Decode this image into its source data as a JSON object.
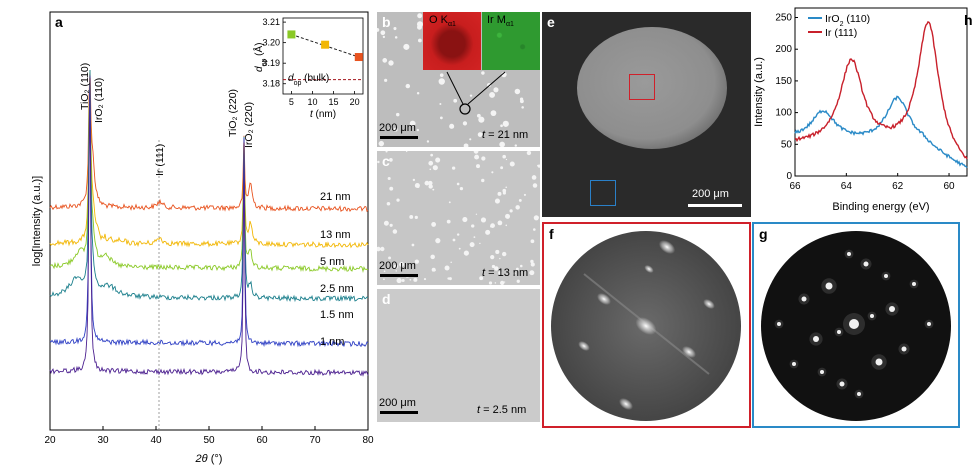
{
  "panels": {
    "a": {
      "label": "a",
      "xlabel_italic": "2θ",
      "xlabel_unit": "(°)",
      "ylabel": "log[Intensity (a.u.)]",
      "xticks": [
        "20",
        "30",
        "40",
        "50",
        "60",
        "70",
        "80"
      ],
      "peak_labels": {
        "tio2_110": "TiO₂ (110)",
        "iro2_110": "IrO₂ (110)",
        "ir_111": "Ir (111)",
        "tio2_220": "TiO₂ (220)",
        "iro2_220": "IrO₂ (220)"
      },
      "traces": [
        {
          "name": "21 nm",
          "color": "#e8531f"
        },
        {
          "name": "13 nm",
          "color": "#f2b705"
        },
        {
          "name": "5 nm",
          "color": "#8ac926"
        },
        {
          "name": "2.5 nm",
          "color": "#1b7f8c"
        },
        {
          "name": "1.5 nm",
          "color": "#2e3fc4"
        },
        {
          "name": "1 nm",
          "color": "#4b1f8f"
        }
      ],
      "inset": {
        "ylabel": "dop (Å)",
        "ylabel_main": "d",
        "ylabel_sub": "op",
        "ylabel_unit": "(Å)",
        "xlabel_italic": "t",
        "xlabel_unit": "(nm)",
        "yticks": [
          "3.21",
          "3.20",
          "3.19",
          "3.18"
        ],
        "xticks": [
          "5",
          "10",
          "15",
          "20"
        ],
        "bulk_label_main": "d",
        "bulk_label_sub": "op",
        "bulk_label_rest": "(bulk)",
        "points": [
          {
            "t": 5,
            "d": 3.204,
            "color": "#8ac926"
          },
          {
            "t": 13,
            "d": 3.199,
            "color": "#f2b705"
          },
          {
            "t": 21,
            "d": 3.193,
            "color": "#e8531f"
          }
        ],
        "bulk_d": 3.182
      }
    },
    "b": {
      "label": "b",
      "scale": "200 μm",
      "thickness_italic": "t",
      "thickness_rest": "= 21 nm",
      "inset_o": "O K",
      "inset_o_sub": "α1",
      "inset_ir": "Ir M",
      "inset_ir_sub": "α1"
    },
    "c": {
      "label": "c",
      "scale": "200 μm",
      "thickness_italic": "t",
      "thickness_rest": "= 13 nm"
    },
    "d": {
      "label": "d",
      "scale": "200 μm",
      "thickness_italic": "t",
      "thickness_rest": "= 2.5 nm"
    },
    "e": {
      "label": "e",
      "scale": "200 μm"
    },
    "f": {
      "label": "f"
    },
    "g": {
      "label": "g"
    },
    "h": {
      "label": "h",
      "xlabel": "Binding energy (eV)",
      "ylabel": "Intensity (a.u.)",
      "xticks": [
        "66",
        "64",
        "62",
        "60"
      ],
      "yticks": [
        "0",
        "50",
        "100",
        "150",
        "200",
        "250"
      ],
      "legend": [
        {
          "name_main": "IrO",
          "name_sub": "2",
          "name_rest": " (110)",
          "color": "#2a8ac7"
        },
        {
          "name_main": "Ir (111)",
          "name_sub": "",
          "name_rest": "",
          "color": "#c8202b"
        }
      ]
    }
  },
  "chart_data": [
    {
      "type": "line",
      "panel": "a",
      "xlabel": "2θ (°)",
      "ylabel": "log[Intensity (a.u.)]",
      "xlim": [
        20,
        80
      ],
      "series": [
        {
          "name": "21 nm"
        },
        {
          "name": "13 nm"
        },
        {
          "name": "5 nm"
        },
        {
          "name": "2.5 nm"
        },
        {
          "name": "1.5 nm"
        },
        {
          "name": "1 nm"
        }
      ]
    },
    {
      "type": "scatter",
      "panel": "a-inset",
      "xlabel": "t (nm)",
      "ylabel": "dop (Å)",
      "x": [
        5,
        13,
        21
      ],
      "y": [
        3.204,
        3.199,
        3.193
      ],
      "xlim": [
        3,
        22
      ],
      "ylim": [
        3.175,
        3.212
      ]
    },
    {
      "type": "line",
      "panel": "h",
      "xlabel": "Binding energy (eV)",
      "ylabel": "Intensity (a.u.)",
      "xlim": [
        66,
        59.3
      ],
      "ylim": [
        0,
        265
      ],
      "series": [
        {
          "name": "IrO2 (110)",
          "peaks": [
            [
              64.9,
              105
            ],
            [
              62.0,
              128
            ]
          ]
        },
        {
          "name": "Ir (111)",
          "peaks": [
            [
              63.8,
              180
            ],
            [
              60.8,
              210
            ]
          ]
        }
      ]
    }
  ]
}
